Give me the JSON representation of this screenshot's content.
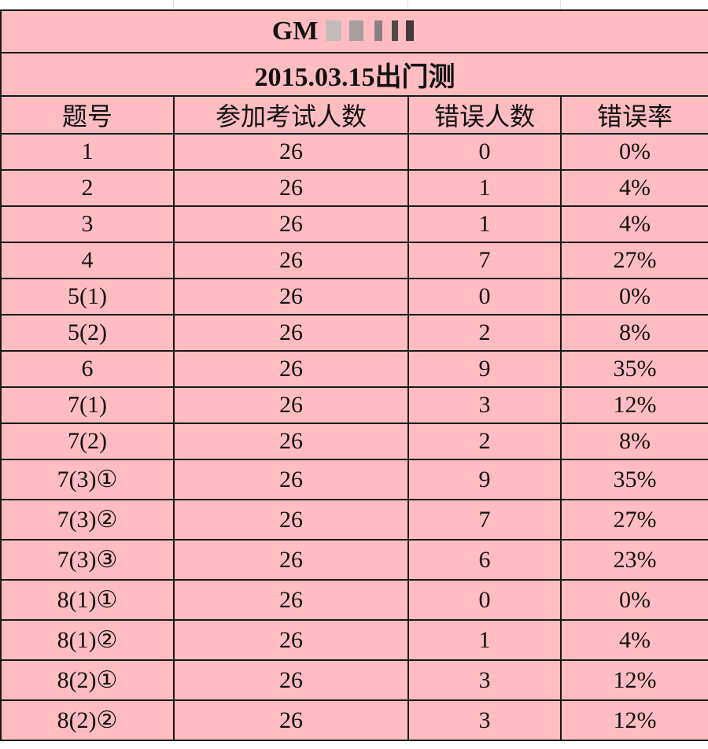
{
  "sheet": {
    "title_visible": "GM",
    "subtitle": "2015.03.15出门测",
    "headers": [
      "题号",
      "参加考试人数",
      "错误人数",
      "错误率"
    ],
    "rows": [
      {
        "q": "1",
        "n": "26",
        "wrong": "0",
        "rate": "0%"
      },
      {
        "q": "2",
        "n": "26",
        "wrong": "1",
        "rate": "4%"
      },
      {
        "q": "3",
        "n": "26",
        "wrong": "1",
        "rate": "4%"
      },
      {
        "q": "4",
        "n": "26",
        "wrong": "7",
        "rate": "27%"
      },
      {
        "q": "5(1)",
        "n": "26",
        "wrong": "0",
        "rate": "0%"
      },
      {
        "q": "5(2)",
        "n": "26",
        "wrong": "2",
        "rate": "8%"
      },
      {
        "q": "6",
        "n": "26",
        "wrong": "9",
        "rate": "35%"
      },
      {
        "q": "7(1)",
        "n": "26",
        "wrong": "3",
        "rate": "12%"
      },
      {
        "q": "7(2)",
        "n": "26",
        "wrong": "2",
        "rate": "8%"
      },
      {
        "q": "7(3)①",
        "n": "26",
        "wrong": "9",
        "rate": "35%"
      },
      {
        "q": "7(3)②",
        "n": "26",
        "wrong": "7",
        "rate": "27%"
      },
      {
        "q": "7(3)③",
        "n": "26",
        "wrong": "6",
        "rate": "23%"
      },
      {
        "q": "8(1)①",
        "n": "26",
        "wrong": "0",
        "rate": "0%"
      },
      {
        "q": "8(1)②",
        "n": "26",
        "wrong": "1",
        "rate": "4%"
      },
      {
        "q": "8(2)①",
        "n": "26",
        "wrong": "3",
        "rate": "12%"
      },
      {
        "q": "8(2)②",
        "n": "26",
        "wrong": "3",
        "rate": "12%"
      }
    ]
  },
  "colors": {
    "cell_fill": "#ffbcc1",
    "border": "#1a1a1a"
  }
}
